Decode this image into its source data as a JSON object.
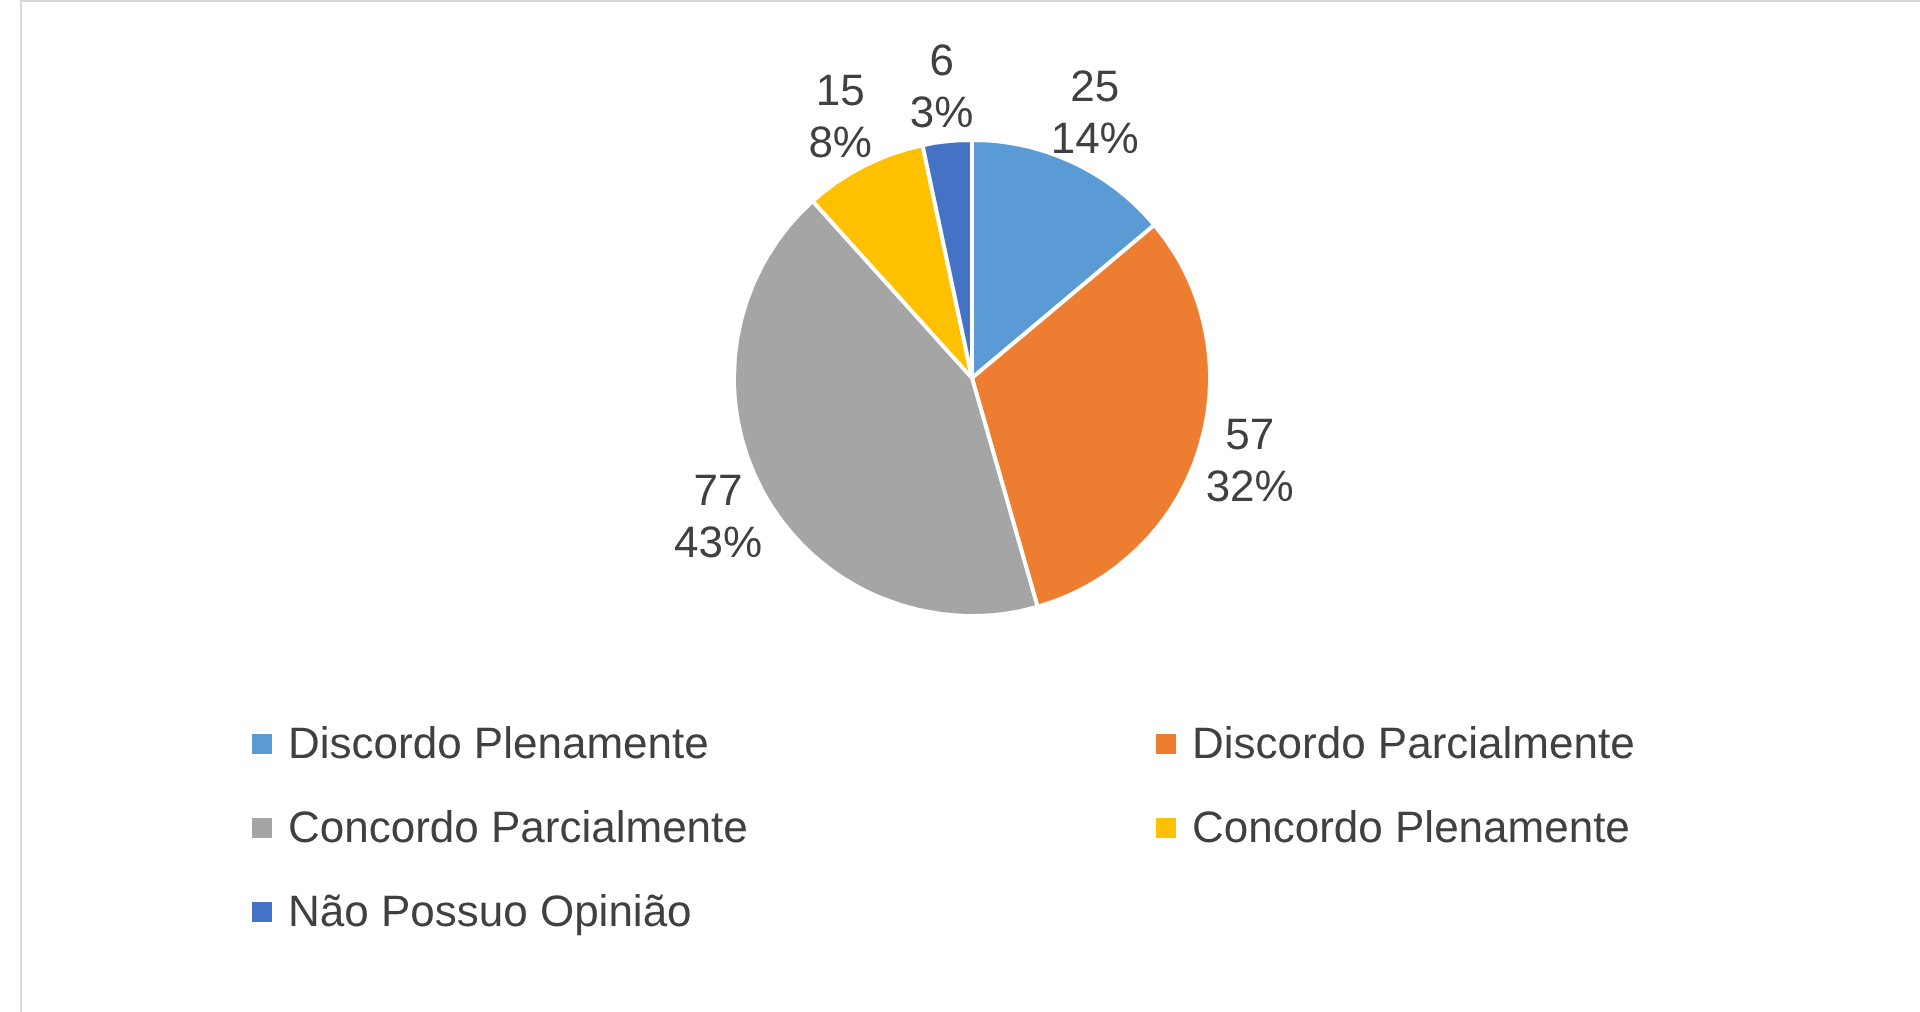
{
  "chart_data": {
    "type": "pie",
    "categories": [
      "Discordo Plenamente",
      "Discordo Parcialmente",
      "Concordo Parcialmente",
      "Concordo Plenamente",
      "Não Possuo Opinião"
    ],
    "values": [
      25,
      57,
      77,
      15,
      6
    ],
    "colors": [
      "#5b9bd5",
      "#ed7d31",
      "#a5a5a5",
      "#ffc000",
      "#4472c4"
    ],
    "value_labels": [
      "25\n14%",
      "57\n32%",
      "77\n43%",
      "15\n8%",
      "6\n3%"
    ],
    "legend": "bottom"
  }
}
